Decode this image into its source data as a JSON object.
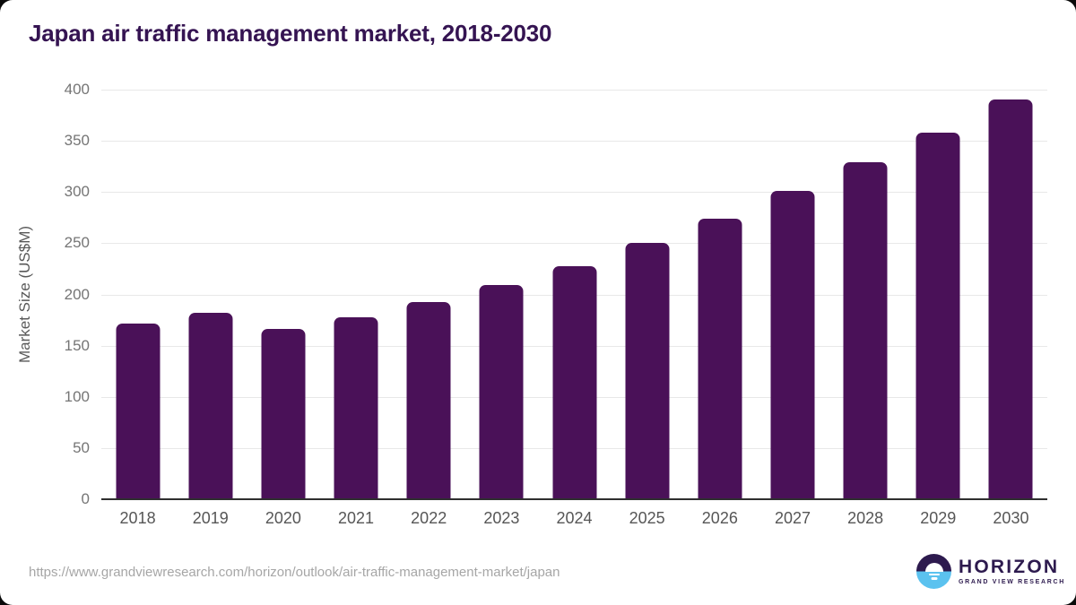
{
  "title": "Japan air traffic management market, 2018-2030",
  "chart_data": {
    "type": "bar",
    "categories": [
      "2018",
      "2019",
      "2020",
      "2021",
      "2022",
      "2023",
      "2024",
      "2025",
      "2026",
      "2027",
      "2028",
      "2029",
      "2030"
    ],
    "values": [
      172,
      182,
      166,
      178,
      193,
      209,
      228,
      250,
      274,
      301,
      329,
      358,
      390
    ],
    "title": "Japan air traffic management market, 2018-2030",
    "xlabel": "",
    "ylabel": "Market Size (US$M)",
    "ylim": [
      0,
      400
    ],
    "ytick_step": 50,
    "grid": true,
    "legend": "none",
    "bar_color": "#4a1158"
  },
  "colors": {
    "title_text": "#351452",
    "bar": "#4a1158",
    "gridline": "#e8e8e8",
    "axis_line": "#2f2f2f",
    "tick_text": "#757575",
    "axis_title_text": "#595959",
    "url_text": "#a6a6a6",
    "logo_dark": "#2d1a4e",
    "logo_blue": "#5bc2ef"
  },
  "footer": {
    "source_url": "https://www.grandviewresearch.com/horizon/outlook/air-traffic-management-market/japan",
    "logo": {
      "icon": "horizon-sun-over-water-icon",
      "brand": "HORIZON",
      "sub": "GRAND VIEW RESEARCH"
    }
  }
}
